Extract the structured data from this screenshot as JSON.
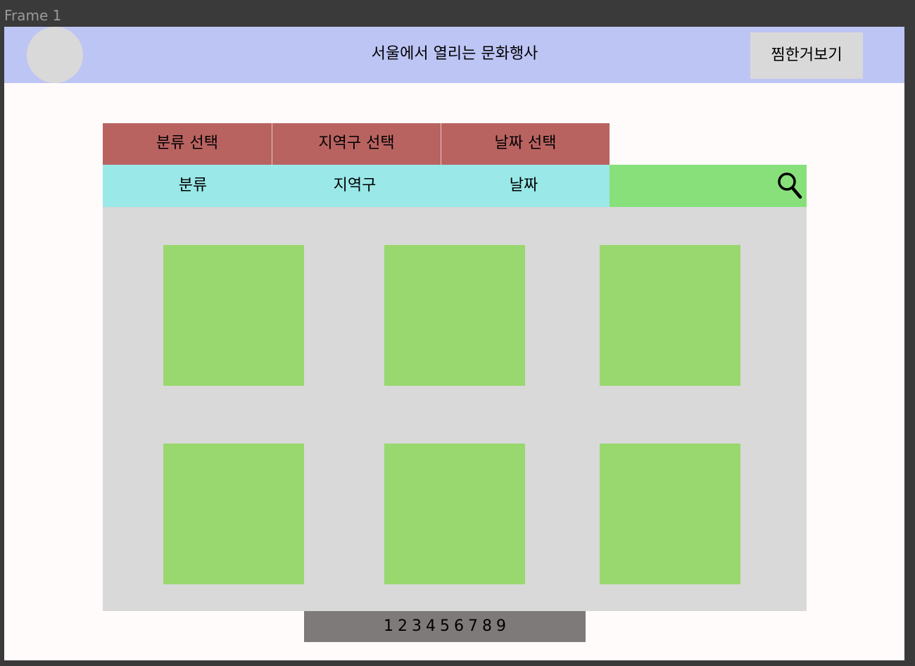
{
  "frame_label": "Frame 1",
  "header": {
    "title": "서울에서 열리는 문화행사",
    "favorites_label": "찜한거보기"
  },
  "filter_tabs": [
    {
      "label": "분류 선택"
    },
    {
      "label": "지역구 선택"
    },
    {
      "label": "날짜 선택"
    }
  ],
  "filter_values": [
    {
      "label": "분류"
    },
    {
      "label": "지역구"
    },
    {
      "label": "날짜"
    }
  ],
  "search": {
    "icon": "search-icon"
  },
  "event_cards": 6,
  "pagination": {
    "pages": [
      "1",
      "2",
      "3",
      "4",
      "5",
      "6",
      "7",
      "8",
      "9"
    ]
  },
  "colors": {
    "header_bg": "#bdc5f5",
    "tab_bg": "#b96361",
    "filter_value_bg": "#9ae8e8",
    "search_bg": "#87e07a",
    "content_bg": "#d9d9d9",
    "card_bg": "#99d86e",
    "pagination_bg": "#7f7a7a"
  }
}
